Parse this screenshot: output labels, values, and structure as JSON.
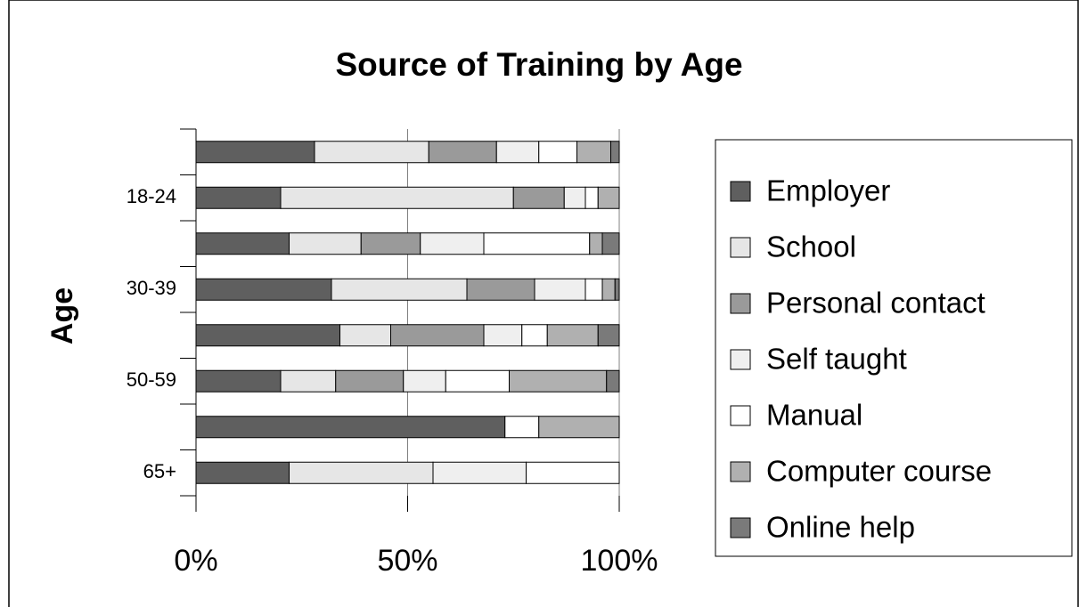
{
  "chart_data": {
    "type": "stacked_barh",
    "title": "Source of Training by Age",
    "ylabel": "Age",
    "categories": [
      "65+",
      null,
      "50-59",
      null,
      "30-39",
      null,
      "18-24",
      null
    ],
    "series": [
      {
        "name": "Employer",
        "color": "#5f5f5f",
        "values": [
          22,
          73,
          20,
          34,
          32,
          22,
          20,
          28
        ]
      },
      {
        "name": "School",
        "color": "#e6e6e6",
        "values": [
          34,
          0,
          13,
          12,
          32,
          17,
          55,
          27
        ]
      },
      {
        "name": "Personal contact",
        "color": "#9a9a9a",
        "values": [
          0,
          0,
          16,
          22,
          16,
          14,
          12,
          16
        ]
      },
      {
        "name": "Self taught",
        "color": "#efefef",
        "values": [
          22,
          0,
          10,
          9,
          12,
          15,
          5,
          10
        ]
      },
      {
        "name": "Manual",
        "color": "#ffffff",
        "values": [
          22,
          8,
          15,
          6,
          4,
          25,
          3,
          9
        ]
      },
      {
        "name": "Computer course",
        "color": "#b0b0b0",
        "values": [
          0,
          19,
          23,
          12,
          3,
          3,
          5,
          8
        ]
      },
      {
        "name": "Online help",
        "color": "#7a7a7a",
        "values": [
          0,
          0,
          3,
          5,
          1,
          4,
          0,
          2
        ]
      }
    ],
    "xlim": [
      0,
      100
    ],
    "xticks": [
      {
        "value": 0,
        "label": "0%"
      },
      {
        "value": 50,
        "label": "50%"
      },
      {
        "value": 100,
        "label": "100%"
      }
    ],
    "grid": true,
    "legend": "right"
  }
}
